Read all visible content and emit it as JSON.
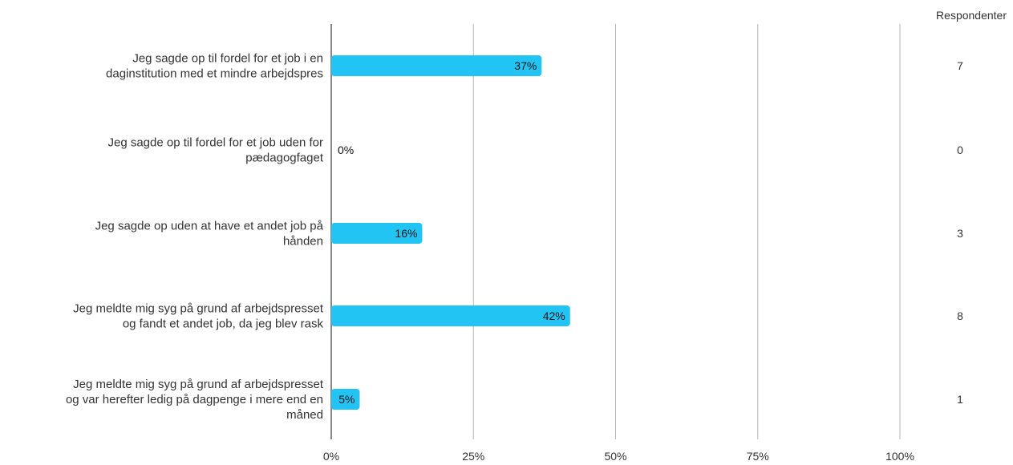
{
  "chart_data": {
    "type": "bar",
    "orientation": "horizontal",
    "categories": [
      [
        "Jeg sagde op til fordel for et job i en",
        "daginstitution med et mindre arbejdspres"
      ],
      [
        "Jeg sagde op til fordel for et job uden for",
        "pædagogfaget"
      ],
      [
        "Jeg sagde op uden at have et andet job på",
        "hånden"
      ],
      [
        "Jeg meldte mig syg på grund af arbejdspresset",
        "og fandt et andet job, da jeg blev rask"
      ],
      [
        "Jeg meldte mig syg på grund af arbejdspresset",
        "og var herefter ledig på dagpenge i mere end en",
        "måned"
      ]
    ],
    "values": [
      37,
      0,
      16,
      42,
      5
    ],
    "value_labels": [
      "37%",
      "0%",
      "16%",
      "42%",
      "5%"
    ],
    "respondents_header": "Respondenter",
    "respondents": [
      "7",
      "0",
      "3",
      "8",
      "1"
    ],
    "xlim": [
      0,
      100
    ],
    "xticks": [
      0,
      25,
      50,
      75,
      100
    ],
    "xtick_labels": [
      "0%",
      "25%",
      "50%",
      "75%",
      "100%"
    ],
    "grid": true,
    "bar_color": "#22c4f4",
    "grid_color": "#b5b5b5",
    "axis_color": "#888888"
  }
}
